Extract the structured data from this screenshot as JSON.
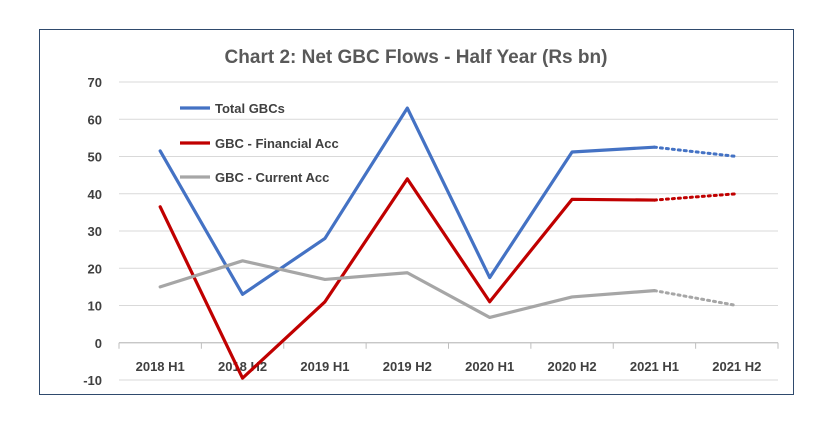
{
  "chart_data": {
    "type": "line",
    "title": "Chart 2: Net GBC Flows - Half Year (Rs bn)",
    "xlabel": "",
    "ylabel": "",
    "categories": [
      "2018 H1",
      "2018 H2",
      "2019 H1",
      "2019 H2",
      "2020 H1",
      "2020 H2",
      "2021 H1",
      "2021 H2"
    ],
    "ylim": [
      -10,
      70
    ],
    "yticks": [
      -10,
      0,
      10,
      20,
      30,
      40,
      50,
      60,
      70
    ],
    "grid": true,
    "legend_position": "top-left",
    "projected_from_index": 6,
    "series": [
      {
        "name": "Total GBCs",
        "color": "#4472c4",
        "values": [
          51.5,
          13,
          28,
          63,
          17.5,
          51.2,
          52.5,
          50
        ]
      },
      {
        "name": "GBC - Financial Acc",
        "color": "#c00000",
        "values": [
          36.5,
          -9.5,
          11,
          44,
          11,
          38.5,
          38.3,
          40
        ]
      },
      {
        "name": "GBC - Current Acc",
        "color": "#a6a6a6",
        "values": [
          15,
          22,
          17,
          18.8,
          6.8,
          12.3,
          14,
          10
        ]
      }
    ]
  }
}
